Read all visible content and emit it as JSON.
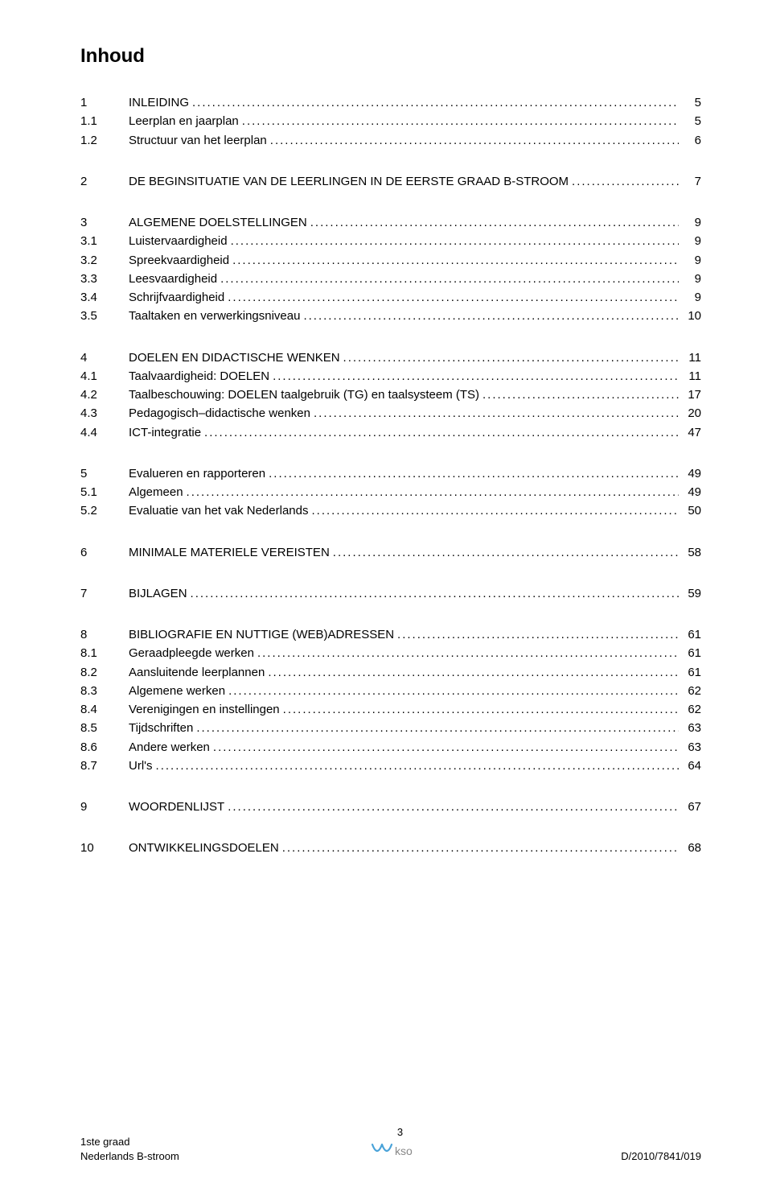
{
  "title": "Inhoud",
  "blocks": [
    [
      {
        "num": "1",
        "label": "INLEIDING",
        "page": "5"
      },
      {
        "num": "1.1",
        "label": "Leerplan en jaarplan",
        "page": "5"
      },
      {
        "num": "1.2",
        "label": "Structuur van het leerplan",
        "page": "6"
      }
    ],
    [
      {
        "num": "2",
        "label": "DE BEGINSITUATIE VAN DE LEERLINGEN IN DE EERSTE GRAAD B-STROOM",
        "page": "7"
      }
    ],
    [
      {
        "num": "3",
        "label": "ALGEMENE DOELSTELLINGEN",
        "page": "9"
      },
      {
        "num": "3.1",
        "label": "Luistervaardigheid",
        "page": "9"
      },
      {
        "num": "3.2",
        "label": "Spreekvaardigheid",
        "page": "9"
      },
      {
        "num": "3.3",
        "label": "Leesvaardigheid",
        "page": "9"
      },
      {
        "num": "3.4",
        "label": "Schrijfvaardigheid",
        "page": "9"
      },
      {
        "num": "3.5",
        "label": "Taaltaken en verwerkingsniveau",
        "page": "10"
      }
    ],
    [
      {
        "num": "4",
        "label": "DOELEN EN DIDACTISCHE WENKEN",
        "page": "11"
      },
      {
        "num": "4.1",
        "label": "Taalvaardigheid: DOELEN",
        "page": "11"
      },
      {
        "num": "4.2",
        "label": "Taalbeschouwing: DOELEN taalgebruik (TG) en taalsysteem (TS)",
        "page": "17"
      },
      {
        "num": "4.3",
        "label": "Pedagogisch–didactische wenken",
        "page": "20"
      },
      {
        "num": "4.4",
        "label": "ICT-integratie",
        "page": "47"
      }
    ],
    [
      {
        "num": "5",
        "label": "Evalueren en rapporteren",
        "page": "49"
      },
      {
        "num": "5.1",
        "label": "Algemeen",
        "page": "49"
      },
      {
        "num": "5.2",
        "label": "Evaluatie van het vak Nederlands",
        "page": "50"
      }
    ],
    [
      {
        "num": "6",
        "label": "MINIMALE MATERIELE VEREISTEN",
        "page": "58"
      }
    ],
    [
      {
        "num": "7",
        "label": "BIJLAGEN",
        "page": "59"
      }
    ],
    [
      {
        "num": "8",
        "label": "BIBLIOGRAFIE EN NUTTIGE (WEB)ADRESSEN",
        "page": "61"
      },
      {
        "num": "8.1",
        "label": "Geraadpleegde werken",
        "page": "61"
      },
      {
        "num": "8.2",
        "label": "Aansluitende leerplannen",
        "page": "61"
      },
      {
        "num": "8.3",
        "label": "Algemene werken",
        "page": "62"
      },
      {
        "num": "8.4",
        "label": "Verenigingen en instellingen",
        "page": "62"
      },
      {
        "num": "8.5",
        "label": "Tijdschriften",
        "page": "63"
      },
      {
        "num": "8.6",
        "label": "Andere werken",
        "page": "63"
      },
      {
        "num": "8.7",
        "label": "Url's",
        "page": "64"
      }
    ],
    [
      {
        "num": "9",
        "label": "WOORDENLIJST",
        "page": "67"
      }
    ],
    [
      {
        "num": "10",
        "label": "ONTWIKKELINGSDOELEN",
        "page": "68"
      }
    ]
  ],
  "footer": {
    "left_line1": "1ste graad",
    "left_line2": "Nederlands B-stroom",
    "center_page": "3",
    "right_line": "D/2010/7841/019"
  },
  "logo": {
    "stroke": "#4aa3d9",
    "text": "#777777"
  }
}
